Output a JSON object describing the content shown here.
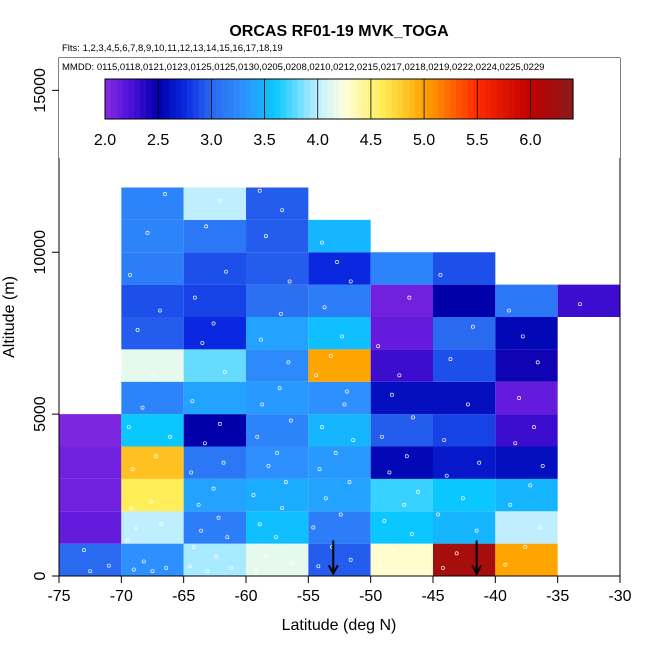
{
  "chart_data": {
    "type": "heatmap",
    "title": "ORCAS RF01-19 MVK_TOGA",
    "flights_label": "Flts: 1,2,3,4,5,6,7,8,9,10,11,12,13,14,15,16,17,18,19",
    "dates_label": "MMDD: 0115,0118,0121,0123,0125,0125,0130,0205,0208,0210,0212,0215,0217,0218,0219,0222,0224,0225,0229",
    "xlabel": "Latitude (deg N)",
    "ylabel": "Altitude (m)",
    "xlim": [
      -75,
      -30
    ],
    "ylim": [
      0,
      16000
    ],
    "xticks": [
      -75,
      -70,
      -65,
      -60,
      -55,
      -50,
      -45,
      -40,
      -35,
      -30
    ],
    "yticks": [
      0,
      5000,
      10000,
      15000
    ],
    "lat_bin_width": 5,
    "alt_bin_height": 1000,
    "colorbar": {
      "min": 2.0,
      "max": 6.4,
      "ticks": [
        2.0,
        2.5,
        3.0,
        3.5,
        4.0,
        4.5,
        5.0,
        5.5,
        6.0
      ],
      "tick_labels": [
        "2.0",
        "2.5",
        "3.0",
        "3.5",
        "4.0",
        "4.5",
        "5.0",
        "5.5",
        "6.0"
      ],
      "stops": [
        {
          "v": 2.0,
          "c": "#8a2be2"
        },
        {
          "v": 2.25,
          "c": "#4b10d8"
        },
        {
          "v": 2.5,
          "c": "#0000aa"
        },
        {
          "v": 2.75,
          "c": "#0a28e0"
        },
        {
          "v": 3.0,
          "c": "#2a6af0"
        },
        {
          "v": 3.3,
          "c": "#2e90ff"
        },
        {
          "v": 3.6,
          "c": "#0ac8ff"
        },
        {
          "v": 4.0,
          "c": "#bfefff"
        },
        {
          "v": 4.25,
          "c": "#ffffe0"
        },
        {
          "v": 4.6,
          "c": "#ffee58"
        },
        {
          "v": 5.0,
          "c": "#ffa500"
        },
        {
          "v": 5.5,
          "c": "#ff2a00"
        },
        {
          "v": 6.0,
          "c": "#c00000"
        },
        {
          "v": 6.4,
          "c": "#8b1a1a"
        }
      ]
    },
    "cells": [
      {
        "lat": -75,
        "alt": 0,
        "value": 3.0
      },
      {
        "lat": -75,
        "alt": 1000,
        "value": 2.15
      },
      {
        "lat": -75,
        "alt": 2000,
        "value": 2.1
      },
      {
        "lat": -75,
        "alt": 3000,
        "value": 2.1
      },
      {
        "lat": -75,
        "alt": 4000,
        "value": 2.05
      },
      {
        "lat": -70,
        "alt": 0,
        "value": 3.3
      },
      {
        "lat": -70,
        "alt": 1000,
        "value": 4.0
      },
      {
        "lat": -70,
        "alt": 2000,
        "value": 4.6
      },
      {
        "lat": -70,
        "alt": 3000,
        "value": 4.85
      },
      {
        "lat": -70,
        "alt": 4000,
        "value": 3.6
      },
      {
        "lat": -70,
        "alt": 5000,
        "value": 3.2
      },
      {
        "lat": -70,
        "alt": 6000,
        "value": 4.15
      },
      {
        "lat": -70,
        "alt": 7000,
        "value": 2.95
      },
      {
        "lat": -70,
        "alt": 8000,
        "value": 2.9
      },
      {
        "lat": -70,
        "alt": 9000,
        "value": 3.15
      },
      {
        "lat": -70,
        "alt": 10000,
        "value": 3.2
      },
      {
        "lat": -70,
        "alt": 11000,
        "value": 3.2
      },
      {
        "lat": -65,
        "alt": 0,
        "value": 3.95
      },
      {
        "lat": -65,
        "alt": 1000,
        "value": 3.15
      },
      {
        "lat": -65,
        "alt": 2000,
        "value": 3.4
      },
      {
        "lat": -65,
        "alt": 3000,
        "value": 3.1
      },
      {
        "lat": -65,
        "alt": 4000,
        "value": 2.5
      },
      {
        "lat": -65,
        "alt": 5000,
        "value": 3.4
      },
      {
        "lat": -65,
        "alt": 6000,
        "value": 3.8
      },
      {
        "lat": -65,
        "alt": 7000,
        "value": 2.75
      },
      {
        "lat": -65,
        "alt": 8000,
        "value": 2.85
      },
      {
        "lat": -65,
        "alt": 9000,
        "value": 2.9
      },
      {
        "lat": -65,
        "alt": 10000,
        "value": 3.1
      },
      {
        "lat": -65,
        "alt": 11000,
        "value": 4.0
      },
      {
        "lat": -60,
        "alt": 0,
        "value": 4.15
      },
      {
        "lat": -60,
        "alt": 1000,
        "value": 3.55
      },
      {
        "lat": -60,
        "alt": 2000,
        "value": 3.45
      },
      {
        "lat": -60,
        "alt": 3000,
        "value": 3.3
      },
      {
        "lat": -60,
        "alt": 4000,
        "value": 3.2
      },
      {
        "lat": -60,
        "alt": 5000,
        "value": 3.35
      },
      {
        "lat": -60,
        "alt": 6000,
        "value": 3.25
      },
      {
        "lat": -60,
        "alt": 7000,
        "value": 3.4
      },
      {
        "lat": -60,
        "alt": 8000,
        "value": 3.05
      },
      {
        "lat": -60,
        "alt": 9000,
        "value": 2.95
      },
      {
        "lat": -60,
        "alt": 10000,
        "value": 2.95
      },
      {
        "lat": -60,
        "alt": 11000,
        "value": 2.95
      },
      {
        "lat": -55,
        "alt": 0,
        "value": 2.95
      },
      {
        "lat": -55,
        "alt": 1000,
        "value": 3.15
      },
      {
        "lat": -55,
        "alt": 2000,
        "value": 3.4
      },
      {
        "lat": -55,
        "alt": 3000,
        "value": 3.35
      },
      {
        "lat": -55,
        "alt": 4000,
        "value": 3.5
      },
      {
        "lat": -55,
        "alt": 5000,
        "value": 3.3
      },
      {
        "lat": -55,
        "alt": 6000,
        "value": 5.0
      },
      {
        "lat": -55,
        "alt": 7000,
        "value": 3.55
      },
      {
        "lat": -55,
        "alt": 8000,
        "value": 3.15
      },
      {
        "lat": -55,
        "alt": 9000,
        "value": 2.75
      },
      {
        "lat": -55,
        "alt": 10000,
        "value": 3.5
      },
      {
        "lat": -50,
        "alt": 0,
        "value": 4.3
      },
      {
        "lat": -50,
        "alt": 1000,
        "value": 3.6
      },
      {
        "lat": -50,
        "alt": 2000,
        "value": 3.7
      },
      {
        "lat": -50,
        "alt": 3000,
        "value": 2.55
      },
      {
        "lat": -50,
        "alt": 4000,
        "value": 2.95
      },
      {
        "lat": -50,
        "alt": 5000,
        "value": 2.6
      },
      {
        "lat": -50,
        "alt": 6000,
        "value": 2.3
      },
      {
        "lat": -50,
        "alt": 7000,
        "value": 2.15
      },
      {
        "lat": -50,
        "alt": 8000,
        "value": 2.1
      },
      {
        "lat": -50,
        "alt": 9000,
        "value": 3.2
      },
      {
        "lat": -45,
        "alt": 0,
        "value": 6.2
      },
      {
        "lat": -45,
        "alt": 1000,
        "value": 3.5
      },
      {
        "lat": -45,
        "alt": 2000,
        "value": 3.6
      },
      {
        "lat": -45,
        "alt": 3000,
        "value": 2.65
      },
      {
        "lat": -45,
        "alt": 4000,
        "value": 2.85
      },
      {
        "lat": -45,
        "alt": 5000,
        "value": 2.6
      },
      {
        "lat": -45,
        "alt": 6000,
        "value": 2.9
      },
      {
        "lat": -45,
        "alt": 7000,
        "value": 3.0
      },
      {
        "lat": -45,
        "alt": 8000,
        "value": 2.5
      },
      {
        "lat": -45,
        "alt": 9000,
        "value": 2.9
      },
      {
        "lat": -40,
        "alt": 0,
        "value": 5.0
      },
      {
        "lat": -40,
        "alt": 1000,
        "value": 4.0
      },
      {
        "lat": -40,
        "alt": 2000,
        "value": 3.5
      },
      {
        "lat": -40,
        "alt": 3000,
        "value": 2.6
      },
      {
        "lat": -40,
        "alt": 4000,
        "value": 2.3
      },
      {
        "lat": -40,
        "alt": 5000,
        "value": 2.15
      },
      {
        "lat": -40,
        "alt": 6000,
        "value": 2.45
      },
      {
        "lat": -40,
        "alt": 7000,
        "value": 2.55
      },
      {
        "lat": -40,
        "alt": 8000,
        "value": 3.1
      },
      {
        "lat": -35,
        "alt": 8000,
        "value": 2.3
      }
    ],
    "sample_points": [
      [
        -72.5,
        150
      ],
      [
        -71,
        320
      ],
      [
        -73,
        800
      ],
      [
        -69,
        200
      ],
      [
        -67.5,
        150
      ],
      [
        -68.2,
        450
      ],
      [
        -66.4,
        250
      ],
      [
        -69.5,
        1100
      ],
      [
        -68.8,
        1500
      ],
      [
        -66.8,
        1600
      ],
      [
        -69.2,
        2100
      ],
      [
        -67.6,
        2300
      ],
      [
        -69.1,
        3300
      ],
      [
        -67.2,
        3700
      ],
      [
        -69.4,
        4600
      ],
      [
        -68.3,
        5200
      ],
      [
        -66.1,
        4300
      ],
      [
        -67.5,
        6200
      ],
      [
        -68.7,
        7600
      ],
      [
        -66.9,
        8200
      ],
      [
        -69.3,
        9300
      ],
      [
        -67.9,
        10600
      ],
      [
        -66.5,
        11800
      ],
      [
        -64.5,
        300
      ],
      [
        -63.1,
        150
      ],
      [
        -62.4,
        600
      ],
      [
        -61.2,
        250
      ],
      [
        -64.2,
        900
      ],
      [
        -63.6,
        1400
      ],
      [
        -62.2,
        1800
      ],
      [
        -61.5,
        1200
      ],
      [
        -63.8,
        2200
      ],
      [
        -62.6,
        2700
      ],
      [
        -64.4,
        3200
      ],
      [
        -61.8,
        3500
      ],
      [
        -63.3,
        4100
      ],
      [
        -62.1,
        4700
      ],
      [
        -64.3,
        5400
      ],
      [
        -61.7,
        6300
      ],
      [
        -63.5,
        7200
      ],
      [
        -62.6,
        7800
      ],
      [
        -64.1,
        8600
      ],
      [
        -61.6,
        9400
      ],
      [
        -63.2,
        10800
      ],
      [
        -62.1,
        11600
      ],
      [
        -59.2,
        200
      ],
      [
        -58.4,
        600
      ],
      [
        -57.6,
        1200
      ],
      [
        -56.3,
        400
      ],
      [
        -58.9,
        1600
      ],
      [
        -57.1,
        2100
      ],
      [
        -59.4,
        2500
      ],
      [
        -56.8,
        2900
      ],
      [
        -58.2,
        3400
      ],
      [
        -57.5,
        3800
      ],
      [
        -59.1,
        4300
      ],
      [
        -56.4,
        4800
      ],
      [
        -58.7,
        5300
      ],
      [
        -57.3,
        5800
      ],
      [
        -56.6,
        6600
      ],
      [
        -58.8,
        7300
      ],
      [
        -57.2,
        8100
      ],
      [
        -56.5,
        9100
      ],
      [
        -58.4,
        10500
      ],
      [
        -57.1,
        11300
      ],
      [
        -58.9,
        11900
      ],
      [
        -54.2,
        300
      ],
      [
        -53.1,
        900
      ],
      [
        -51.6,
        500
      ],
      [
        -54.6,
        1500
      ],
      [
        -52.4,
        1900
      ],
      [
        -53.6,
        2400
      ],
      [
        -51.7,
        2900
      ],
      [
        -54.1,
        3300
      ],
      [
        -52.8,
        3800
      ],
      [
        -51.4,
        4200
      ],
      [
        -53.9,
        4600
      ],
      [
        -52.1,
        5300
      ],
      [
        -51.9,
        5700
      ],
      [
        -54.4,
        6200
      ],
      [
        -53.2,
        6800
      ],
      [
        -52.3,
        7400
      ],
      [
        -53.7,
        8300
      ],
      [
        -51.6,
        9100
      ],
      [
        -52.7,
        9700
      ],
      [
        -53.9,
        10300
      ],
      [
        -49.3,
        300
      ],
      [
        -48.2,
        800
      ],
      [
        -46.7,
        1300
      ],
      [
        -48.9,
        1700
      ],
      [
        -47.3,
        2200
      ],
      [
        -46.2,
        2600
      ],
      [
        -48.5,
        3200
      ],
      [
        -47.1,
        3700
      ],
      [
        -49.1,
        4300
      ],
      [
        -46.6,
        4900
      ],
      [
        -48.3,
        5600
      ],
      [
        -47.7,
        6200
      ],
      [
        -49.4,
        7100
      ],
      [
        -46.9,
        8600
      ],
      [
        -44.2,
        250
      ],
      [
        -43.1,
        700
      ],
      [
        -41.5,
        1400
      ],
      [
        -44.6,
        1900
      ],
      [
        -42.6,
        2400
      ],
      [
        -43.9,
        3100
      ],
      [
        -41.3,
        3500
      ],
      [
        -44.1,
        4200
      ],
      [
        -42.2,
        5300
      ],
      [
        -43.6,
        6700
      ],
      [
        -41.8,
        7700
      ],
      [
        -44.4,
        9300
      ],
      [
        -39.2,
        350
      ],
      [
        -37.6,
        900
      ],
      [
        -36.4,
        1500
      ],
      [
        -38.8,
        2200
      ],
      [
        -37.2,
        2800
      ],
      [
        -36.2,
        3400
      ],
      [
        -38.4,
        4100
      ],
      [
        -36.9,
        4600
      ],
      [
        -38.1,
        5500
      ],
      [
        -36.6,
        6600
      ],
      [
        -37.8,
        7400
      ],
      [
        -38.9,
        8200
      ],
      [
        -33.2,
        8400
      ]
    ],
    "arrows_lat": [
      -53,
      -41.5
    ]
  }
}
